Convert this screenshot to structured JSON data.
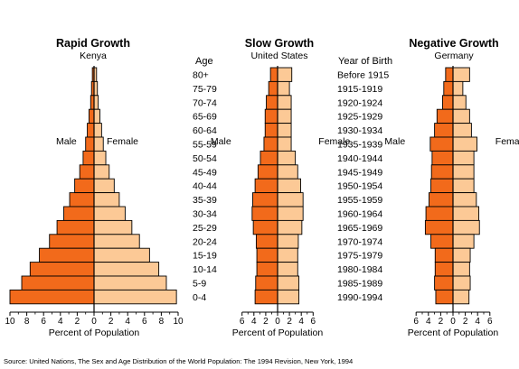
{
  "colors": {
    "male": "#f26a1b",
    "female": "#fcc996",
    "stroke": "#000000"
  },
  "age_header": "Age",
  "year_header": "Year of Birth",
  "age_groups": [
    "80+",
    "75-79",
    "70-74",
    "65-69",
    "60-64",
    "55-59",
    "50-54",
    "45-49",
    "40-44",
    "35-39",
    "30-34",
    "25-29",
    "20-24",
    "15-19",
    "10-14",
    "5-9",
    "0-4"
  ],
  "birth_years": [
    "Before 1915",
    "1915-1919",
    "1920-1924",
    "1925-1929",
    "1930-1934",
    "1935-1939",
    "1940-1944",
    "1945-1949",
    "1950-1954",
    "1955-1959",
    "1960-1964",
    "1965-1969",
    "1970-1974",
    "1975-1979",
    "1980-1984",
    "1985-1989",
    "1990-1994"
  ],
  "source": "Source: United Nations, The Sex and Age Distribution of the World Population: The 1994 Revision, New York, 1994",
  "chart_data": [
    {
      "type": "bar",
      "orientation": "horizontal-population-pyramid",
      "title": "Rapid Growth",
      "subtitle": "Kenya",
      "xlabel": "Percent of Population",
      "male_label": "Male",
      "female_label": "Female",
      "x_ticks_male": [
        "10",
        "8",
        "6",
        "4",
        "2",
        "0"
      ],
      "x_ticks_female": [
        "2",
        "4",
        "6",
        "8",
        "10"
      ],
      "xlim": [
        -10,
        10
      ],
      "categories": [
        "80+",
        "75-79",
        "70-74",
        "65-69",
        "60-64",
        "55-59",
        "50-54",
        "45-49",
        "40-44",
        "35-39",
        "30-34",
        "25-29",
        "20-24",
        "15-19",
        "10-14",
        "5-9",
        "0-4"
      ],
      "series": [
        {
          "name": "Male",
          "values": [
            0.2,
            0.3,
            0.4,
            0.6,
            0.8,
            1.0,
            1.3,
            1.7,
            2.3,
            2.9,
            3.6,
            4.4,
            5.3,
            6.5,
            7.6,
            8.6,
            10.0
          ]
        },
        {
          "name": "Female",
          "values": [
            0.3,
            0.4,
            0.5,
            0.7,
            0.9,
            1.1,
            1.4,
            1.8,
            2.4,
            3.0,
            3.7,
            4.5,
            5.4,
            6.6,
            7.7,
            8.6,
            9.8
          ]
        }
      ]
    },
    {
      "type": "bar",
      "orientation": "horizontal-population-pyramid",
      "title": "Slow Growth",
      "subtitle": "United States",
      "xlabel": "Percent of Population",
      "male_label": "Male",
      "female_label": "Female",
      "x_ticks_male": [
        "6",
        "4",
        "2",
        "0"
      ],
      "x_ticks_female": [
        "2",
        "4",
        "6"
      ],
      "xlim": [
        -6,
        6
      ],
      "categories": [
        "80+",
        "75-79",
        "70-74",
        "65-69",
        "60-64",
        "55-59",
        "50-54",
        "45-49",
        "40-44",
        "35-39",
        "30-34",
        "25-29",
        "20-24",
        "15-19",
        "10-14",
        "5-9",
        "0-4"
      ],
      "series": [
        {
          "name": "Male",
          "values": [
            1.2,
            1.5,
            1.9,
            2.1,
            2.1,
            2.3,
            2.9,
            3.3,
            3.8,
            4.2,
            4.3,
            4.1,
            3.6,
            3.5,
            3.5,
            3.7,
            3.8
          ]
        },
        {
          "name": "Female",
          "values": [
            2.4,
            2.0,
            2.3,
            2.3,
            2.3,
            2.3,
            3.0,
            3.4,
            3.9,
            4.3,
            4.3,
            4.1,
            3.5,
            3.4,
            3.4,
            3.6,
            3.6
          ]
        }
      ]
    },
    {
      "type": "bar",
      "orientation": "horizontal-population-pyramid",
      "title": "Negative Growth",
      "subtitle": "Germany",
      "xlabel": "Percent of Population",
      "male_label": "Male",
      "female_label": "Female",
      "x_ticks_male": [
        "6",
        "4",
        "2",
        "0"
      ],
      "x_ticks_female": [
        "2",
        "4",
        "6"
      ],
      "xlim": [
        -6,
        6
      ],
      "categories": [
        "80+",
        "75-79",
        "70-74",
        "65-69",
        "60-64",
        "55-59",
        "50-54",
        "45-49",
        "40-44",
        "35-39",
        "30-34",
        "25-29",
        "20-24",
        "15-19",
        "10-14",
        "5-9",
        "0-4"
      ],
      "series": [
        {
          "name": "Male",
          "values": [
            1.2,
            1.5,
            1.7,
            2.6,
            3.0,
            3.7,
            3.4,
            3.5,
            3.6,
            3.9,
            4.4,
            4.5,
            3.6,
            2.9,
            2.9,
            3.0,
            2.8
          ]
        },
        {
          "name": "Female",
          "values": [
            2.7,
            1.6,
            2.1,
            2.7,
            3.0,
            3.9,
            3.4,
            3.4,
            3.4,
            3.8,
            4.2,
            4.3,
            3.4,
            2.8,
            2.7,
            2.8,
            2.6
          ]
        }
      ]
    }
  ]
}
